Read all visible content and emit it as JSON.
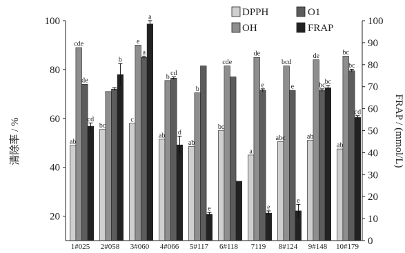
{
  "chart_data": {
    "type": "bar",
    "title": "",
    "xlabel": "",
    "ylabel": "清除率 / %",
    "y2label": "FRAP / (mmol/L)",
    "ylim": [
      10,
      100
    ],
    "y2lim": [
      0,
      100
    ],
    "yticks": [
      "20",
      "40",
      "60",
      "80",
      "100"
    ],
    "y2ticks": [
      "0",
      "10",
      "20",
      "30",
      "40",
      "50",
      "60",
      "70",
      "80",
      "90",
      "100"
    ],
    "grid": false,
    "legend_position": "top-right",
    "categories": [
      "1#025",
      "2#058",
      "3#060",
      "4#066",
      "5#117",
      "6#118",
      "7119",
      "8#124",
      "9#148",
      "10#179"
    ],
    "series": [
      {
        "name": "DPPH",
        "axis": "left",
        "color": "#cfcfcf",
        "values": [
          49,
          55.5,
          58,
          51.5,
          48.5,
          55,
          45,
          50.5,
          51,
          47.5
        ],
        "errors": [
          0,
          0,
          0,
          0,
          0,
          0,
          0,
          0,
          0,
          0
        ],
        "labels": [
          "ab",
          "bc",
          "c",
          "ab",
          "ab",
          "bc",
          "a",
          "abc",
          "ab",
          "ab"
        ]
      },
      {
        "name": "OH",
        "axis": "left",
        "color": "#8e8e8e",
        "values": [
          89,
          71,
          90,
          75.5,
          70.5,
          81.5,
          85,
          81.5,
          84,
          85.5
        ],
        "errors": [
          0,
          0,
          0,
          0,
          0,
          0,
          0,
          0,
          0,
          0
        ],
        "labels": [
          "cde",
          "",
          "e",
          "b",
          "b",
          "cde",
          "de",
          "bcd",
          "de",
          "bc"
        ]
      },
      {
        "name": "O1",
        "axis": "left",
        "color": "#5c5c5c",
        "values": [
          74,
          72,
          85,
          76.5,
          81.5,
          77,
          71.5,
          71.5,
          71.5,
          79.5
        ],
        "errors": [
          0,
          0.6,
          0.5,
          0.5,
          0,
          0,
          0.6,
          0,
          0.6,
          0.6
        ],
        "labels": [
          "de",
          "",
          "a",
          "cd",
          "",
          "",
          "e",
          "e",
          "bc",
          "bc"
        ]
      },
      {
        "name": "FRAP",
        "axis": "right",
        "color": "#222222",
        "values": [
          52,
          75.5,
          98.5,
          43.5,
          12,
          27,
          12.5,
          13.5,
          69.5,
          56
        ],
        "errors": [
          1.5,
          5,
          1.5,
          4,
          0.8,
          0,
          1,
          3,
          1,
          0.8
        ],
        "labels": [
          "cd",
          "b",
          "a",
          "d",
          "e",
          "",
          "e",
          "e",
          "bc",
          "cd"
        ]
      }
    ]
  }
}
